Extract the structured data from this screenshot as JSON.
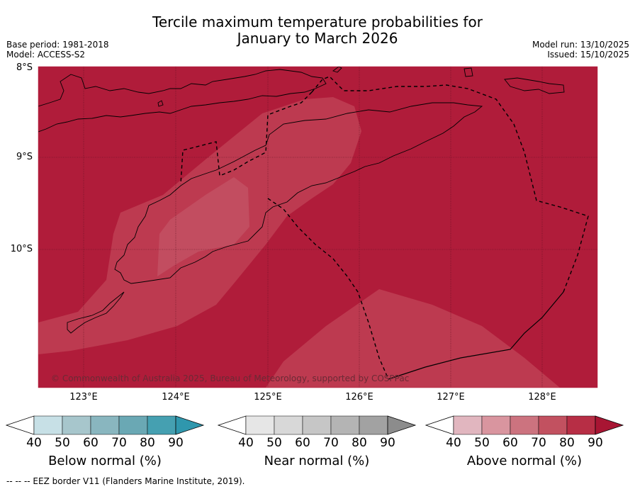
{
  "title": {
    "line1": "Tercile maximum temperature probabilities for",
    "line2": "January to March 2026"
  },
  "meta": {
    "base_period": "Base period: 1981-2018",
    "model": "Model: ACCESS-S2",
    "model_run": "Model run: 13/10/2025",
    "issued": "Issued: 15/10/2025"
  },
  "map": {
    "lat_labels": [
      "8°S",
      "9°S",
      "10°S"
    ],
    "lon_labels": [
      "123°E",
      "124°E",
      "125°E",
      "126°E",
      "127°E",
      "128°E"
    ],
    "copyright": "© Commonwealth of Australia 2025, Bureau of Meteorology, supported by COSPPac",
    "colors": {
      "above_90": "#b01c3a",
      "above_80": "#bd3a50",
      "above_70": "#c24d60",
      "border": "#000000"
    }
  },
  "legends": [
    {
      "name": "below",
      "title": "Below normal (%)",
      "ticks": [
        "40",
        "50",
        "60",
        "70",
        "80",
        "90"
      ],
      "colors": [
        "#ffffff",
        "#c7e0e6",
        "#a7c6cc",
        "#89b6bf",
        "#6aa8b4",
        "#45a0b1",
        "#2f97ad"
      ]
    },
    {
      "name": "near",
      "title": "Near normal (%)",
      "ticks": [
        "40",
        "50",
        "60",
        "70",
        "80",
        "90"
      ],
      "colors": [
        "#ffffff",
        "#e6e6e6",
        "#d8d8d8",
        "#c6c6c6",
        "#b4b4b4",
        "#a2a2a2",
        "#8c8c8c"
      ]
    },
    {
      "name": "above",
      "title": "Above normal (%)",
      "ticks": [
        "40",
        "50",
        "60",
        "70",
        "80",
        "90"
      ],
      "colors": [
        "#ffffff",
        "#e1b6bf",
        "#d9959f",
        "#cc737f",
        "#c25160",
        "#b72e45",
        "#a81533"
      ]
    }
  ],
  "footnote": "-- -- -- EEZ border V11 (Flanders Marine Institute, 2019)."
}
